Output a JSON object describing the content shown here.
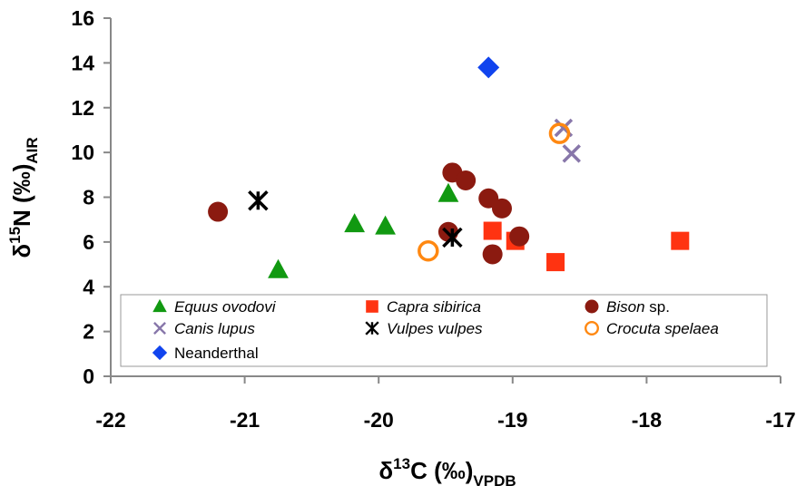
{
  "chart_data": {
    "type": "scatter",
    "xlabel": {
      "prefix": "δ",
      "sup": "13",
      "main": "C (‰)",
      "sub": "VPDB"
    },
    "ylabel": {
      "prefix": "δ",
      "sup": "15",
      "main": "N (‰)",
      "sub": "AIR"
    },
    "xlim": [
      -22,
      -17
    ],
    "ylim": [
      0,
      16
    ],
    "xticks": [
      -22,
      -21,
      -20,
      -19,
      -18,
      -17
    ],
    "yticks": [
      0,
      2,
      4,
      6,
      8,
      10,
      12,
      14,
      16
    ],
    "grid": false,
    "legend": {
      "placement": "bottom",
      "columns": 3
    },
    "series": [
      {
        "name": "Equus ovodovi",
        "italic": true,
        "suffix": "",
        "marker": "triangle",
        "color": "#119911",
        "points": [
          [
            -20.75,
            4.75
          ],
          [
            -20.18,
            6.8
          ],
          [
            -19.95,
            6.7
          ],
          [
            -19.48,
            8.15
          ]
        ]
      },
      {
        "name": "Capra sibirica",
        "italic": true,
        "suffix": "",
        "marker": "square",
        "color": "#ff3311",
        "points": [
          [
            -19.15,
            6.5
          ],
          [
            -18.98,
            6.05
          ],
          [
            -18.68,
            5.1
          ],
          [
            -17.75,
            6.05
          ]
        ]
      },
      {
        "name": "Bison",
        "italic": true,
        "suffix": " sp.",
        "marker": "circle",
        "color": "#8b1a10",
        "points": [
          [
            -21.2,
            7.35
          ],
          [
            -19.45,
            9.1
          ],
          [
            -19.35,
            8.75
          ],
          [
            -19.18,
            7.95
          ],
          [
            -19.08,
            7.5
          ],
          [
            -19.48,
            6.45
          ],
          [
            -19.15,
            5.45
          ],
          [
            -18.95,
            6.25
          ]
        ]
      },
      {
        "name": "Canis lupus",
        "italic": true,
        "suffix": "",
        "marker": "x",
        "color": "#8877aa",
        "points": [
          [
            -18.62,
            11.1
          ],
          [
            -18.56,
            9.95
          ]
        ]
      },
      {
        "name": "Vulpes vulpes",
        "italic": true,
        "suffix": "",
        "marker": "asterisk",
        "color": "#000000",
        "points": [
          [
            -20.9,
            7.85
          ],
          [
            -19.45,
            6.2
          ]
        ]
      },
      {
        "name": "Crocuta spelaea",
        "italic": true,
        "suffix": "",
        "marker": "open-circle",
        "color": "#ff8811",
        "points": [
          [
            -19.63,
            5.6
          ],
          [
            -18.65,
            10.85
          ]
        ]
      },
      {
        "name": "Neanderthal",
        "italic": false,
        "suffix": "",
        "marker": "diamond",
        "color": "#1144ee",
        "points": [
          [
            -19.18,
            13.8
          ]
        ]
      }
    ]
  }
}
